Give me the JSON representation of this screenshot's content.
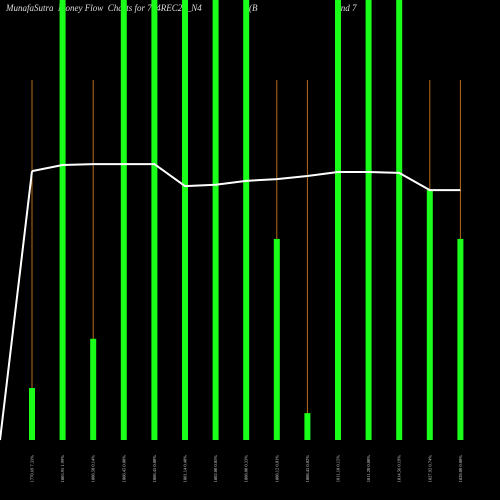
{
  "chart_data": {
    "type": "bar",
    "title": "MunafaSutra  Money Flow  Charts for 704REC26_N4                     (B                                   ond 7",
    "categories": [
      "1770.69 7.33%",
      "1805.95 1.99%",
      "1808.50 0.14%",
      "1808.45 0.00%",
      "1808.45 0.00%",
      "1801.14 0.40%",
      "1802.00 0.05%",
      "1808.00 0.33%",
      "1808.12 0.01%",
      "1808.45 0.02%",
      "1811.18 0.15%",
      "1811.20 0.00%",
      "1814.56 0.19%",
      "1827.92 0.74%",
      "1828.00 0.00%"
    ],
    "values": [
      11.8,
      100,
      23,
      100,
      100,
      100,
      100,
      100,
      45.7,
      6.1,
      100,
      100,
      100,
      56.8,
      45.7
    ],
    "color": "#1aff1a",
    "stem_color": "#b86b1a",
    "line": {
      "color": "#ffffff",
      "values": [
        61.1,
        62.5,
        62.7,
        62.7,
        62.7,
        57.7,
        58.0,
        58.9,
        59.3,
        60.0,
        60.9,
        60.9,
        60.7,
        56.8,
        56.8
      ]
    },
    "ylim": [
      0,
      100
    ]
  }
}
